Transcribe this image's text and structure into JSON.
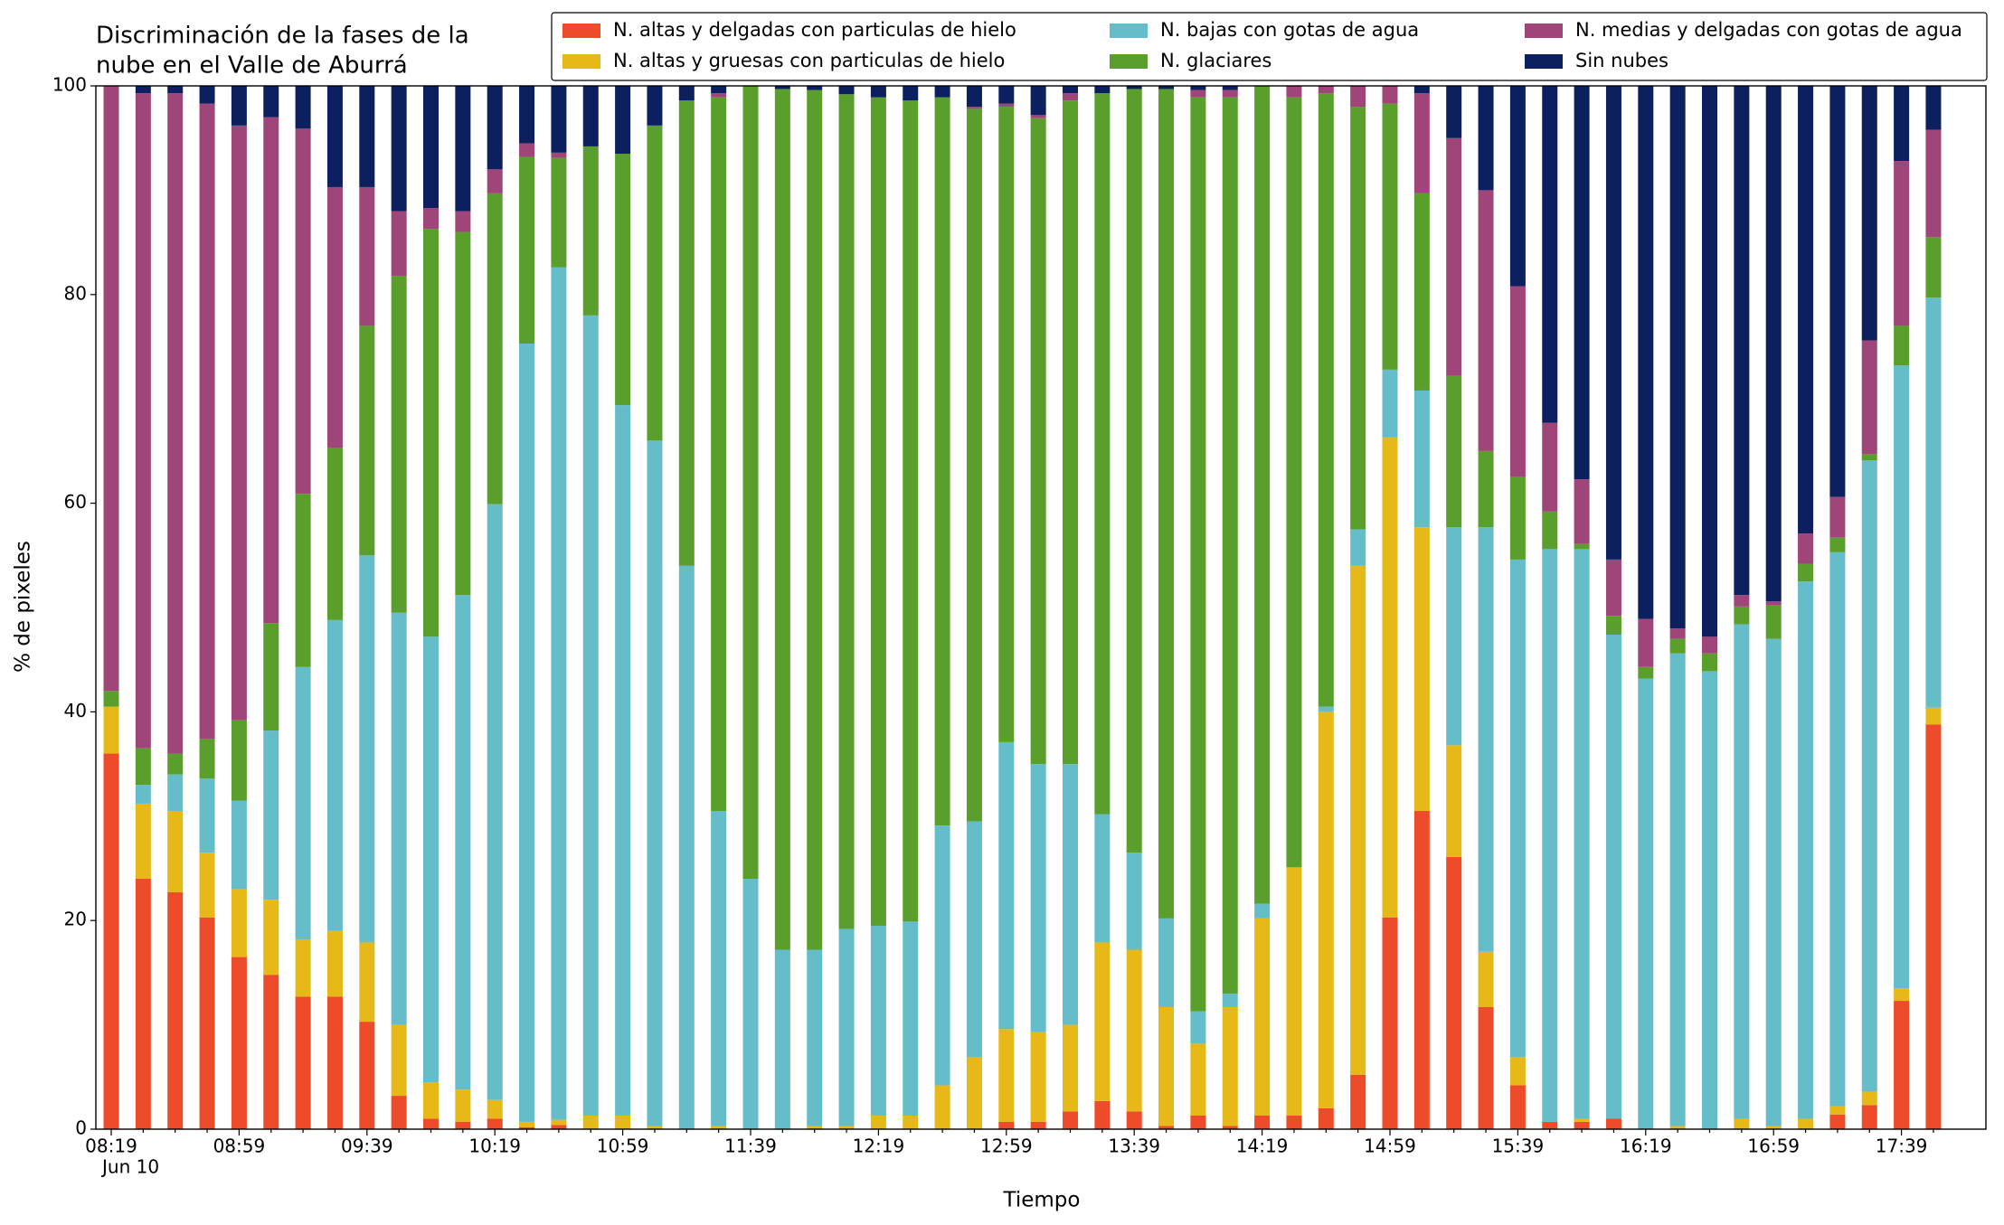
{
  "chart_data": {
    "type": "stacked_bar",
    "title": [
      "Discriminación de la fases de la",
      "nube en el Valle de Aburrá"
    ],
    "y_label": "% de pixeles",
    "x_label": "Tiempo",
    "x_sublabel": "Jun 10",
    "categories": [
      "08:19",
      null,
      null,
      null,
      "08:59",
      null,
      null,
      null,
      "09:39",
      null,
      null,
      null,
      "10:19",
      null,
      null,
      null,
      "10:59",
      null,
      null,
      null,
      "11:39",
      null,
      null,
      null,
      "12:19",
      null,
      null,
      null,
      "12:59",
      null,
      null,
      null,
      "13:39",
      null,
      null,
      null,
      "14:19",
      null,
      null,
      null,
      "14:59",
      null,
      null,
      null,
      "15:39",
      null,
      null,
      null,
      "16:19",
      null,
      null,
      null,
      "16:59",
      null,
      null,
      null,
      "17:39",
      null
    ],
    "ylim": [
      0,
      100
    ],
    "yticks": [
      0,
      20,
      40,
      60,
      80,
      100
    ],
    "legend": "upper right",
    "series": [
      {
        "name": "N. altas y delgadas con particulas de hielo",
        "color": "#ee4b2b",
        "values": [
          36,
          24,
          22.7,
          20.3,
          16.5,
          14.8,
          12.7,
          12.7,
          10.3,
          3.2,
          1,
          0.7,
          1,
          0.2,
          0.4,
          0,
          0,
          0,
          0,
          0,
          0,
          0,
          0,
          0,
          0,
          0,
          0,
          0,
          0.7,
          0.7,
          1.7,
          2.7,
          1.7,
          0.3,
          1.3,
          0.3,
          1.3,
          1.3,
          2,
          5.2,
          20.3,
          30.5,
          26.1,
          11.7,
          4.2,
          0.7,
          0.7,
          1,
          0,
          0,
          0,
          0,
          0,
          0,
          1.4,
          2.3,
          12.3,
          38.8
        ]
      },
      {
        "name": "N. altas y gruesas con particulas de hielo",
        "color": "#e6b818",
        "values": [
          4.5,
          7.2,
          7.8,
          6.2,
          6.5,
          7.2,
          5.5,
          6.3,
          7.6,
          6.8,
          3.5,
          3.1,
          1.8,
          0.5,
          0.5,
          1.3,
          1.3,
          0.3,
          0,
          0.3,
          0,
          0,
          0.3,
          0.3,
          1.3,
          1.3,
          4.2,
          6.9,
          8.9,
          8.6,
          8.3,
          15.2,
          15.5,
          11.4,
          6.9,
          11.4,
          18.9,
          23.8,
          38,
          48.8,
          46,
          27.2,
          10.7,
          5.3,
          2.7,
          0,
          0.3,
          0,
          0,
          0.3,
          0,
          1,
          0.3,
          1,
          0.8,
          1.3,
          1.2,
          1.6
        ]
      },
      {
        "name": "N. bajas con gotas de agua",
        "color": "#64bdc9",
        "values": [
          0,
          1.8,
          3.5,
          7.1,
          8.5,
          16.2,
          26.1,
          29.8,
          37.1,
          39.5,
          42.7,
          47.4,
          57.1,
          74.6,
          81.7,
          76.7,
          68.1,
          65.7,
          54,
          30.2,
          24,
          17.2,
          16.9,
          18.9,
          18.2,
          18.6,
          24.9,
          22.6,
          27.5,
          25.7,
          25,
          12.3,
          9.3,
          8.5,
          3.1,
          1.3,
          1.4,
          0,
          0.5,
          3.5,
          6.5,
          13.1,
          20.9,
          40.7,
          47.7,
          54.9,
          54.6,
          46.4,
          43.2,
          45.3,
          43.9,
          47.4,
          46.7,
          51.5,
          53.1,
          60.5,
          59.7,
          39.3
        ]
      },
      {
        "name": "N. glaciares",
        "color": "#5a9e2c",
        "values": [
          1.5,
          3.5,
          2,
          3.8,
          7.7,
          10.3,
          16.6,
          16.5,
          22,
          32.3,
          39.1,
          34.8,
          29.8,
          17.9,
          10.5,
          16.2,
          24.1,
          30.2,
          44.6,
          68.4,
          76,
          82.5,
          82.4,
          80,
          79.4,
          78.7,
          69.8,
          68.3,
          60.9,
          61.9,
          63.6,
          69.1,
          73.2,
          79.5,
          87.6,
          85.9,
          78.4,
          73.8,
          58.8,
          40.5,
          25.5,
          18.9,
          14.5,
          7.3,
          7.9,
          3.6,
          0.5,
          1.8,
          1.1,
          1.4,
          1.7,
          1.7,
          3.2,
          1.7,
          1.4,
          0.6,
          3.8,
          5.8
        ]
      },
      {
        "name": "N. medias y delgadas con gotas de agua",
        "color": "#a0457a",
        "values": [
          58,
          62.8,
          63.3,
          60.9,
          57,
          48.5,
          35,
          25,
          13.3,
          6.2,
          2,
          2,
          2.3,
          1.3,
          0.5,
          0,
          0,
          0,
          0,
          0.4,
          0,
          0,
          0,
          0,
          0,
          0,
          0,
          0.2,
          0.3,
          0.3,
          0.7,
          0,
          0,
          0,
          0.7,
          0.7,
          0,
          1.1,
          0.7,
          2,
          1.7,
          9.6,
          22.8,
          25,
          18.3,
          8.5,
          6.2,
          5.4,
          4.6,
          1,
          1.6,
          1.1,
          0.4,
          2.9,
          3.9,
          10.9,
          15.8,
          10.3
        ]
      },
      {
        "name": "Sin nubes",
        "color": "#0c2060",
        "values": [
          0,
          0.7,
          0.7,
          1.7,
          3.8,
          3,
          4.1,
          9.7,
          9.7,
          12,
          11.7,
          12,
          8,
          5.5,
          6.4,
          5.8,
          6.5,
          3.8,
          1.4,
          0.7,
          0,
          0.3,
          0.4,
          0.8,
          1.1,
          1.4,
          1.1,
          2,
          1.7,
          2.8,
          0.7,
          0.7,
          0.3,
          0.3,
          0.4,
          0.4,
          0,
          0,
          0,
          0,
          0,
          0.7,
          5,
          10,
          19.2,
          32.3,
          37.7,
          45.4,
          51.1,
          52,
          52.8,
          48.8,
          49.4,
          42.9,
          39.4,
          24.4,
          7.2,
          4.2
        ]
      }
    ]
  }
}
